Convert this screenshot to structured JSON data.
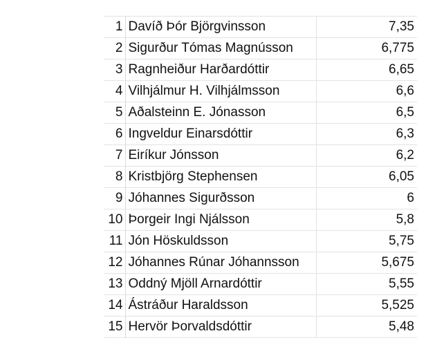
{
  "rows": [
    {
      "num": "1",
      "name": "Davíð Þór Björgvinsson",
      "score": "7,35"
    },
    {
      "num": "2",
      "name": "Sigurður Tómas Magnússon",
      "score": "6,775"
    },
    {
      "num": "3",
      "name": "Ragnheiður Harðardóttir",
      "score": "6,65"
    },
    {
      "num": "4",
      "name": "Vilhjálmur H. Vilhjálmsson",
      "score": "6,6"
    },
    {
      "num": "5",
      "name": "Aðalsteinn E. Jónasson",
      "score": "6,5"
    },
    {
      "num": "6",
      "name": "Ingveldur Einarsdóttir",
      "score": "6,3"
    },
    {
      "num": "7",
      "name": "Eiríkur Jónsson",
      "score": "6,2"
    },
    {
      "num": "8",
      "name": "Kristbjörg Stephensen",
      "score": "6,05"
    },
    {
      "num": "9",
      "name": "Jóhannes Sigurðsson",
      "score": "6"
    },
    {
      "num": "10",
      "name": "Þorgeir Ingi Njálsson",
      "score": "5,8"
    },
    {
      "num": "11",
      "name": "Jón Höskuldsson",
      "score": "5,75"
    },
    {
      "num": "12",
      "name": "Jóhannes Rúnar Jóhannsson",
      "score": "5,675"
    },
    {
      "num": "13",
      "name": "Oddný Mjöll Arnardóttir",
      "score": "5,55"
    },
    {
      "num": "14",
      "name": "Ástráður Haraldsson",
      "score": "5,525"
    },
    {
      "num": "15",
      "name": "Hervör Þorvaldsdóttir",
      "score": "5,48"
    }
  ]
}
